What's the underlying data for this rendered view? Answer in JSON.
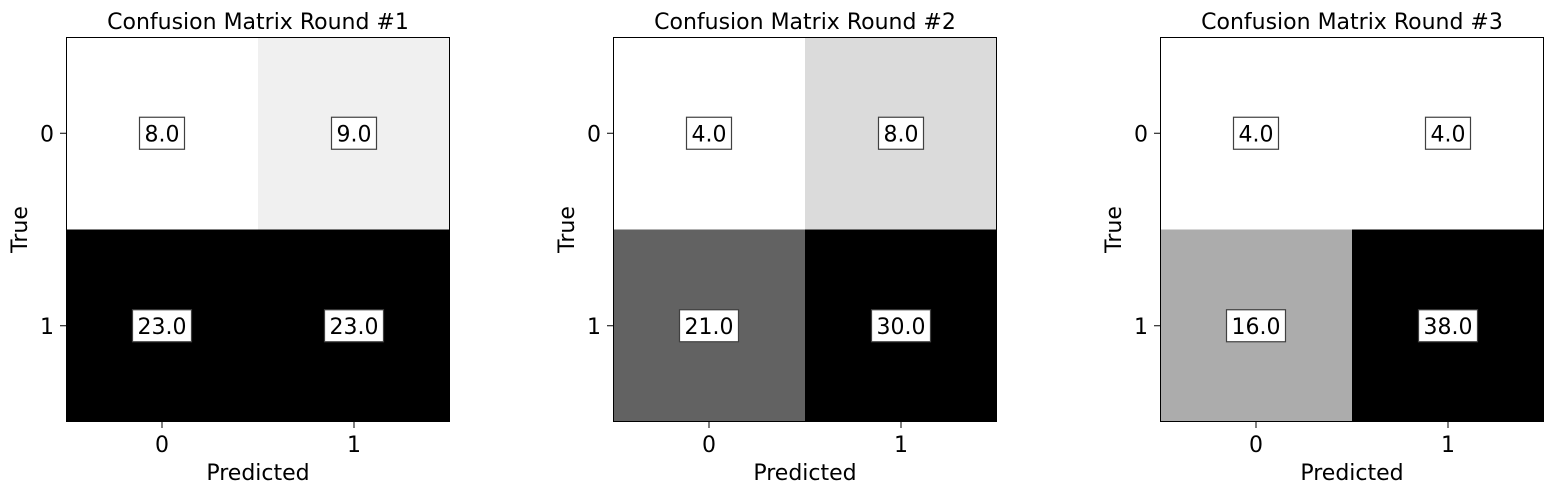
{
  "chart_data": [
    {
      "type": "heatmap",
      "title": "Confusion Matrix Round #1",
      "xlabel": "Predicted",
      "ylabel": "True",
      "x_ticks": [
        "0",
        "1"
      ],
      "y_ticks": [
        "0",
        "1"
      ],
      "values": [
        [
          8.0,
          9.0
        ],
        [
          23.0,
          23.0
        ]
      ],
      "value_labels": [
        [
          "8.0",
          "9.0"
        ],
        [
          "23.0",
          "23.0"
        ]
      ],
      "colormap": "greys",
      "color_range": [
        8.0,
        23.0
      ]
    },
    {
      "type": "heatmap",
      "title": "Confusion Matrix Round #2",
      "xlabel": "Predicted",
      "ylabel": "True",
      "x_ticks": [
        "0",
        "1"
      ],
      "y_ticks": [
        "0",
        "1"
      ],
      "values": [
        [
          4.0,
          8.0
        ],
        [
          21.0,
          30.0
        ]
      ],
      "value_labels": [
        [
          "4.0",
          "8.0"
        ],
        [
          "21.0",
          "30.0"
        ]
      ],
      "colormap": "greys",
      "color_range": [
        4.0,
        30.0
      ]
    },
    {
      "type": "heatmap",
      "title": "Confusion Matrix Round #3",
      "xlabel": "Predicted",
      "ylabel": "True",
      "x_ticks": [
        "0",
        "1"
      ],
      "y_ticks": [
        "0",
        "1"
      ],
      "values": [
        [
          4.0,
          4.0
        ],
        [
          16.0,
          38.0
        ]
      ],
      "value_labels": [
        [
          "4.0",
          "4.0"
        ],
        [
          "16.0",
          "38.0"
        ]
      ],
      "colormap": "greys",
      "color_range": [
        4.0,
        38.0
      ]
    }
  ]
}
